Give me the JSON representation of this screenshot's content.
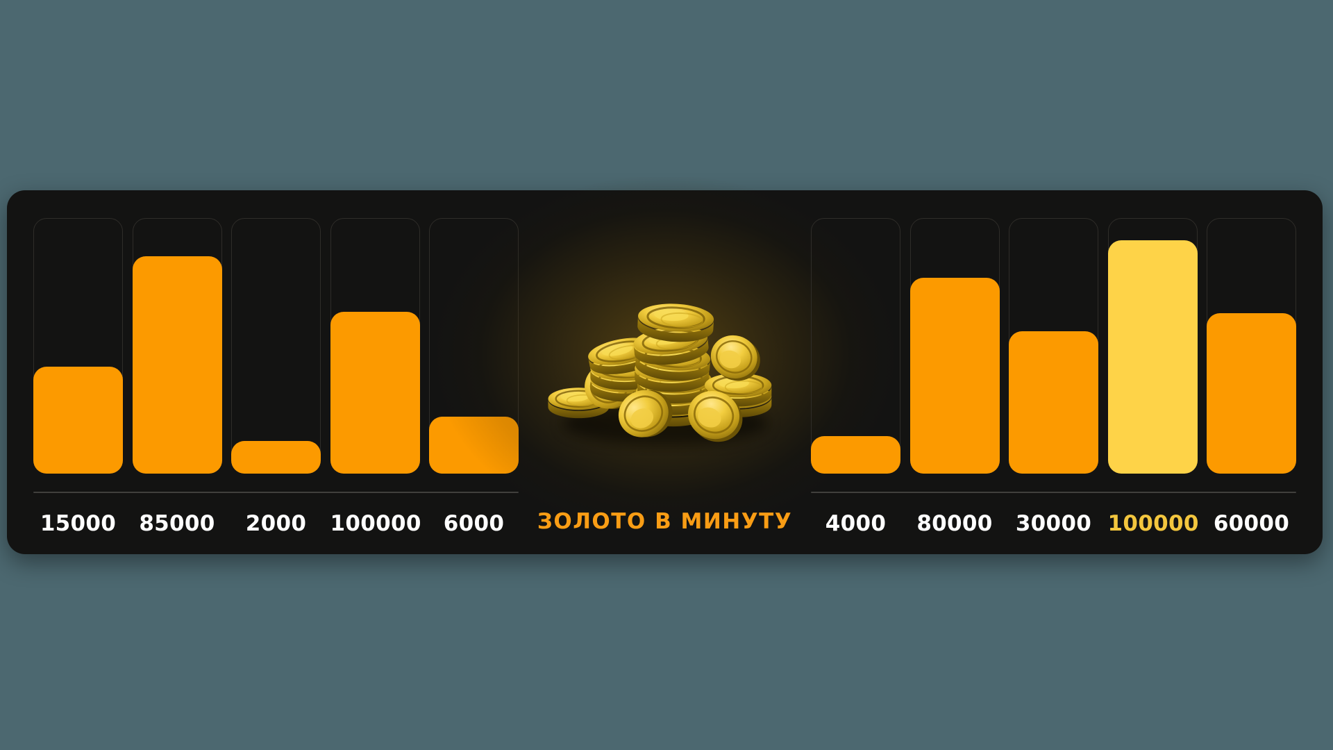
{
  "background_color": "#4C6870",
  "panel": {
    "background": "#131312"
  },
  "title": {
    "text": "ЗОЛОТО В МИНУТУ",
    "color": "#F99D15"
  },
  "center_image": "gold-coins-pile",
  "colors": {
    "bar": "#FC9A00",
    "highlight_bar": "#FED348",
    "label": "#FFFFFF",
    "highlight_label": "#F3C63E",
    "baseline": "#403F3D",
    "track_border": "#2F2D29"
  },
  "chart_data": [
    {
      "type": "bar",
      "position": "left",
      "title": "ЗОЛОТО В МИНУТУ",
      "categories": [
        "15000",
        "85000",
        "2000",
        "100000",
        "6000"
      ],
      "values": [
        15000,
        85000,
        2000,
        100000,
        6000
      ],
      "bar_heights_pct": [
        42.1,
        85.5,
        12.8,
        63.7,
        22.4
      ],
      "highlight_index": null,
      "grid": false,
      "axis_labels": false,
      "legend": false
    },
    {
      "type": "bar",
      "position": "right",
      "title": "ЗОЛОТО В МИНУТУ",
      "categories": [
        "4000",
        "80000",
        "30000",
        "100000",
        "60000"
      ],
      "values": [
        4000,
        80000,
        30000,
        100000,
        60000
      ],
      "bar_heights_pct": [
        14.8,
        77.0,
        56.1,
        91.9,
        63.0
      ],
      "highlight_index": 3,
      "grid": false,
      "axis_labels": false,
      "legend": false
    }
  ]
}
